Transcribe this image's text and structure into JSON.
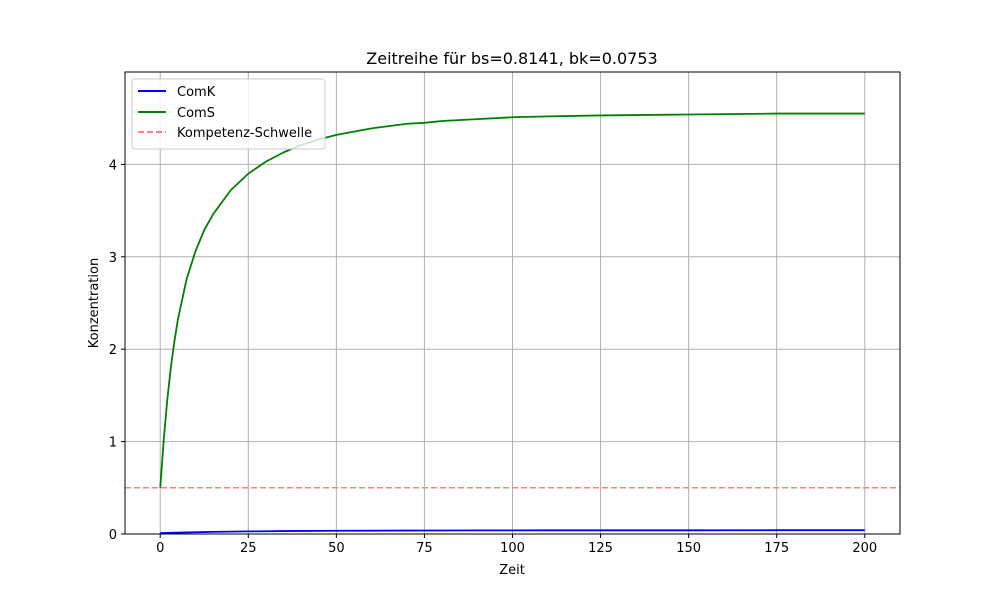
{
  "chart_data": {
    "type": "line",
    "title": "Zeitreihe für bs=0.8141, bk=0.0753",
    "xlabel": "Zeit",
    "ylabel": "Konzentration",
    "xlim": [
      -10,
      210
    ],
    "ylim": [
      0,
      5
    ],
    "xticks": [
      0,
      25,
      50,
      75,
      100,
      125,
      150,
      175,
      200
    ],
    "yticks": [
      0,
      1,
      2,
      3,
      4
    ],
    "grid": true,
    "legend_position": "upper-left",
    "x": [
      0,
      1,
      2,
      3,
      4,
      5,
      7.5,
      10,
      12.5,
      15,
      20,
      25,
      30,
      35,
      40,
      45,
      50,
      60,
      70,
      75,
      80,
      90,
      100,
      110,
      125,
      150,
      175,
      200
    ],
    "series": [
      {
        "name": "ComK",
        "color": "#0000ff",
        "style": "solid",
        "values": [
          0.01,
          0.011,
          0.012,
          0.013,
          0.014,
          0.015,
          0.017,
          0.019,
          0.021,
          0.023,
          0.026,
          0.028,
          0.03,
          0.032,
          0.033,
          0.034,
          0.035,
          0.036,
          0.037,
          0.038,
          0.038,
          0.039,
          0.039,
          0.04,
          0.04,
          0.04,
          0.041,
          0.041
        ]
      },
      {
        "name": "ComS",
        "color": "#008000",
        "style": "solid",
        "values": [
          0.5,
          1.02,
          1.45,
          1.8,
          2.08,
          2.32,
          2.76,
          3.06,
          3.29,
          3.46,
          3.72,
          3.9,
          4.03,
          4.13,
          4.21,
          4.27,
          4.32,
          4.39,
          4.44,
          4.45,
          4.47,
          4.49,
          4.51,
          4.52,
          4.53,
          4.54,
          4.55,
          4.55
        ]
      }
    ],
    "hlines": [
      {
        "name": "Kompetenz-Schwelle",
        "y": 0.5,
        "color": "#ff8080",
        "style": "dashed"
      }
    ]
  }
}
